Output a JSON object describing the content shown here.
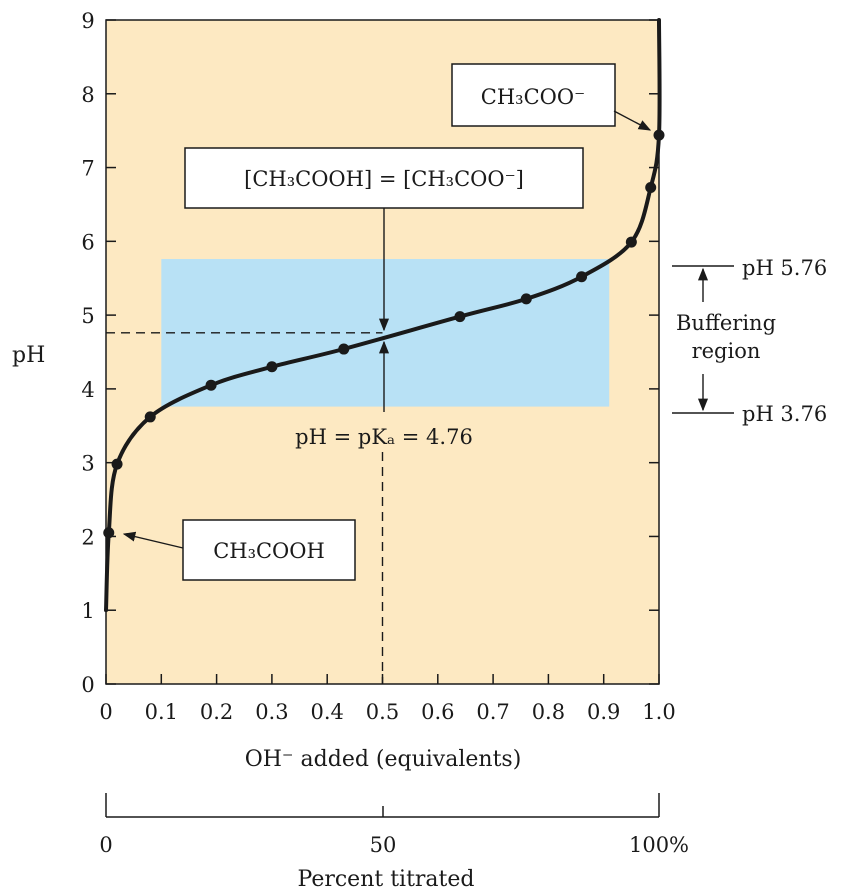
{
  "chart_data": {
    "type": "line",
    "title": "",
    "xlabel": "OH⁻ added (equivalents)",
    "ylabel": "pH",
    "xlim": [
      0,
      1.0
    ],
    "ylim": [
      0,
      9
    ],
    "x_ticks": [
      "0",
      "0.1",
      "0.2",
      "0.3",
      "0.4",
      "0.5",
      "0.6",
      "0.7",
      "0.8",
      "0.9",
      "1.0"
    ],
    "y_ticks": [
      "0",
      "1",
      "2",
      "3",
      "4",
      "5",
      "6",
      "7",
      "8",
      "9"
    ],
    "secondary_axis": {
      "label": "Percent titrated",
      "ticks": [
        "0",
        "50",
        "100%"
      ]
    },
    "series": [
      {
        "values": [
          {
            "x": 0.005,
            "y": 2.05
          },
          {
            "x": 0.02,
            "y": 2.98
          },
          {
            "x": 0.08,
            "y": 3.62
          },
          {
            "x": 0.19,
            "y": 4.05
          },
          {
            "x": 0.3,
            "y": 4.3
          },
          {
            "x": 0.43,
            "y": 4.54
          },
          {
            "x": 0.64,
            "y": 4.98
          },
          {
            "x": 0.76,
            "y": 5.22
          },
          {
            "x": 0.86,
            "y": 5.52
          },
          {
            "x": 0.95,
            "y": 5.99
          },
          {
            "x": 0.985,
            "y": 6.73
          },
          {
            "x": 1.0,
            "y": 7.44
          }
        ]
      }
    ],
    "buffer_region": {
      "x": [
        0.1,
        0.91
      ],
      "y": [
        3.76,
        5.76
      ]
    },
    "pka_point": {
      "x": 0.5,
      "y": 4.76
    },
    "annotations": {
      "acid_box": "CH₃COOH",
      "base_box": "CH₃COO⁻",
      "equal_box": "[CH₃COOH] = [CH₃COO⁻]",
      "pka_label": "pH = pKₐ = 4.76",
      "upper_limit": "pH 5.76",
      "lower_limit": "pH 3.76",
      "buffer_label_line1": "Buffering",
      "buffer_label_line2": "region"
    },
    "colors": {
      "plot_background": "#fde9c2",
      "buffer_region": "#b8e1f5",
      "curve": "#1a1a1a"
    },
    "grid": false,
    "legend": "none"
  }
}
